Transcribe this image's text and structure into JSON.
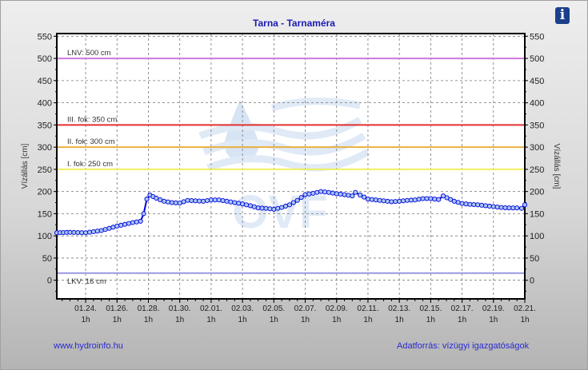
{
  "header": {
    "title": "Tarna - Tarnaméra",
    "info_icon": "info-icon"
  },
  "footer": {
    "left_link": "www.hydroinfo.hu",
    "source": "Adatforrás: vízügyi igazgatóságok"
  },
  "watermark": "OVF",
  "chart_data": {
    "type": "line",
    "title": "Tarna - Tarnaméra",
    "ylabel": "Vízállás [cm]",
    "ylabel_right": "Vízállás [cm]",
    "ylim": [
      -42,
      556
    ],
    "yticks": [
      0,
      50,
      100,
      150,
      200,
      250,
      300,
      350,
      400,
      450,
      500,
      550
    ],
    "xlim_days_from_0124": [
      -1.84,
      28
    ],
    "xticks": [
      {
        "day": 0,
        "label": "01.24.",
        "sub": "1h"
      },
      {
        "day": 2,
        "label": "01.26.",
        "sub": "1h"
      },
      {
        "day": 4,
        "label": "01.28.",
        "sub": "1h"
      },
      {
        "day": 6,
        "label": "01.30.",
        "sub": "1h"
      },
      {
        "day": 8,
        "label": "02.01.",
        "sub": "1h"
      },
      {
        "day": 10,
        "label": "02.03.",
        "sub": "1h"
      },
      {
        "day": 12,
        "label": "02.05.",
        "sub": "1h"
      },
      {
        "day": 14,
        "label": "02.07.",
        "sub": "1h"
      },
      {
        "day": 16,
        "label": "02.09.",
        "sub": "1h"
      },
      {
        "day": 18,
        "label": "02.11.",
        "sub": "1h"
      },
      {
        "day": 20,
        "label": "02.13.",
        "sub": "1h"
      },
      {
        "day": 22,
        "label": "02.15.",
        "sub": "1h"
      },
      {
        "day": 24,
        "label": "02.17.",
        "sub": "1h"
      },
      {
        "day": 26,
        "label": "02.19.",
        "sub": "1h"
      },
      {
        "day": 28,
        "label": "02.21.",
        "sub": "1h"
      }
    ],
    "grid": true,
    "thresholds": [
      {
        "label": "LNV: 500 cm",
        "value": 500,
        "color": "#cc77dd"
      },
      {
        "label": "III. fok: 350 cm",
        "value": 350,
        "color": "#e03030"
      },
      {
        "label": "II. fok: 300 cm",
        "value": 300,
        "color": "#e8b040"
      },
      {
        "label": "I. fok: 250 cm",
        "value": 250,
        "color": "#f0f060"
      },
      {
        "label": "LKV: 16 cm",
        "value": 16,
        "color": "#9999e0"
      }
    ],
    "series": [
      {
        "name": "Vízállás",
        "color": "#0000dd",
        "marker_fill": "#a8c8f0",
        "x": [
          -1.84,
          -1,
          0,
          1,
          2,
          3,
          3.5,
          3.7,
          3.9,
          4.1,
          4.5,
          5,
          5.5,
          6,
          6.5,
          7,
          7.5,
          8,
          8.5,
          9,
          9.5,
          10,
          10.5,
          11,
          11.5,
          12,
          12.5,
          13,
          13.5,
          14,
          14.5,
          15,
          15.5,
          16,
          16.5,
          17,
          17.2,
          17.5,
          18,
          18.5,
          19,
          19.5,
          20,
          20.5,
          21,
          21.5,
          22,
          22.5,
          22.8,
          23.5,
          24,
          24.5,
          25,
          25.5,
          26,
          26.5,
          27,
          27.5,
          27.8,
          28
        ],
        "y": [
          107,
          108,
          107,
          112,
          122,
          130,
          133,
          150,
          183,
          192,
          185,
          178,
          175,
          174,
          180,
          179,
          178,
          181,
          181,
          178,
          175,
          172,
          168,
          163,
          162,
          160,
          164,
          170,
          180,
          193,
          196,
          200,
          198,
          195,
          193,
          190,
          198,
          192,
          183,
          181,
          179,
          177,
          178,
          180,
          181,
          184,
          184,
          182,
          190,
          178,
          173,
          171,
          170,
          168,
          166,
          164,
          163,
          163,
          162,
          170
        ]
      }
    ]
  }
}
